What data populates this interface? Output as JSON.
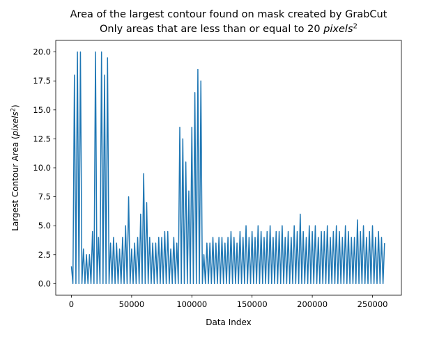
{
  "chart_data": {
    "type": "line",
    "title": [
      [
        {
          "text": "Area of the largest contour found on mask created by GrabCut",
          "style": "normal"
        }
      ],
      [
        {
          "text": "Only areas that are less than or equal to 20 ",
          "style": "normal"
        },
        {
          "text": "pixels",
          "style": "italic"
        },
        {
          "text": "2",
          "style": "sup"
        }
      ]
    ],
    "x_label": [
      {
        "text": "Data Index",
        "style": "normal"
      }
    ],
    "y_label": [
      {
        "text": "Largest Contour Area (",
        "style": "normal"
      },
      {
        "text": "pixels",
        "style": "italic"
      },
      {
        "text": "2",
        "style": "sup"
      },
      {
        "text": ")",
        "style": "normal"
      }
    ],
    "xlim": [
      -13000,
      274000
    ],
    "ylim": [
      -1,
      21
    ],
    "xticks": [
      0,
      50000,
      100000,
      150000,
      200000,
      250000
    ],
    "yticks": [
      {
        "value": 0,
        "label": "0.0"
      },
      {
        "value": 2.5,
        "label": "2.5"
      },
      {
        "value": 5,
        "label": "5.0"
      },
      {
        "value": 7.5,
        "label": "7.5"
      },
      {
        "value": 10,
        "label": "10.0"
      },
      {
        "value": 12.5,
        "label": "12.5"
      },
      {
        "value": 15,
        "label": "15.0"
      },
      {
        "value": 17.5,
        "label": "17.5"
      },
      {
        "value": 20,
        "label": "20.0"
      }
    ],
    "grid": false,
    "series": [
      {
        "color": "#1f77b4",
        "x": [
          0,
          1250,
          2500,
          3750,
          5000,
          6250,
          7500,
          8750,
          10000,
          11250,
          12500,
          13750,
          15000,
          16250,
          17500,
          18750,
          20000,
          21250,
          22500,
          23750,
          25000,
          26250,
          27500,
          28750,
          30000,
          31250,
          32500,
          33750,
          35000,
          36250,
          37500,
          38750,
          40000,
          41250,
          42500,
          43750,
          45000,
          46250,
          47500,
          48750,
          50000,
          51250,
          52500,
          53750,
          55000,
          56250,
          57500,
          58750,
          60000,
          61250,
          62500,
          63750,
          65000,
          66250,
          67500,
          68750,
          70000,
          71250,
          72500,
          73750,
          75000,
          76250,
          77500,
          78750,
          80000,
          81250,
          82500,
          83750,
          85000,
          86250,
          87500,
          88750,
          90000,
          91250,
          92500,
          93750,
          95000,
          96250,
          97500,
          98750,
          100000,
          101250,
          102500,
          103750,
          105000,
          106250,
          107500,
          108750,
          110000,
          111250,
          112500,
          113750,
          115000,
          116250,
          117500,
          118750,
          120000,
          121250,
          122500,
          123750,
          125000,
          126250,
          127500,
          128750,
          130000,
          131250,
          132500,
          133750,
          135000,
          136250,
          137500,
          138750,
          140000,
          141250,
          142500,
          143750,
          145000,
          146250,
          147500,
          148750,
          150000,
          151250,
          152500,
          153750,
          155000,
          156250,
          157500,
          158750,
          160000,
          161250,
          162500,
          163750,
          165000,
          166250,
          167500,
          168750,
          170000,
          171250,
          172500,
          173750,
          175000,
          176250,
          177500,
          178750,
          180000,
          181250,
          182500,
          183750,
          185000,
          186250,
          187500,
          188750,
          190000,
          191250,
          192500,
          193750,
          195000,
          196250,
          197500,
          198750,
          200000,
          201250,
          202500,
          203750,
          205000,
          206250,
          207500,
          208750,
          210000,
          211250,
          212500,
          213750,
          215000,
          216250,
          217500,
          218750,
          220000,
          221250,
          222500,
          223750,
          225000,
          226250,
          227500,
          228750,
          230000,
          231250,
          232500,
          233750,
          235000,
          236250,
          237500,
          238750,
          240000,
          241250,
          242500,
          243750,
          245000,
          246250,
          247500,
          248750,
          250000,
          251250,
          252500,
          253750,
          255000,
          256250,
          257500,
          258750,
          260000
        ],
        "values": [
          1.5,
          0,
          18,
          0,
          20,
          0,
          20,
          0,
          3,
          0,
          2.5,
          0,
          2.5,
          0,
          4.5,
          0,
          20,
          0,
          4,
          0,
          20,
          0,
          18,
          0,
          19.5,
          0,
          3.5,
          0,
          4,
          0,
          3.5,
          0,
          3,
          0,
          4,
          0,
          5,
          0,
          7.5,
          0,
          3,
          0,
          3.5,
          0,
          4,
          0,
          6,
          0,
          9.5,
          0,
          7,
          0,
          4,
          0,
          3.5,
          0,
          3.5,
          0,
          4,
          0,
          4,
          0,
          4.5,
          0,
          4.5,
          0,
          3,
          0,
          4,
          0,
          3.5,
          0,
          13.5,
          0,
          12.5,
          0,
          10.5,
          0,
          8,
          0,
          13.5,
          0,
          16.5,
          0,
          18.5,
          0,
          17.5,
          0,
          2.5,
          0,
          3.5,
          0,
          3.5,
          0,
          4,
          0,
          3.5,
          0,
          4,
          0,
          4,
          0,
          3.5,
          0,
          4,
          0,
          4.5,
          0,
          4,
          0,
          3.5,
          0,
          4.5,
          0,
          4,
          0,
          5,
          0,
          4,
          0,
          4.5,
          0,
          4,
          0,
          5,
          0,
          4.5,
          0,
          4,
          0,
          4.5,
          0,
          5,
          0,
          4,
          0,
          4.5,
          0,
          4.5,
          0,
          5,
          0,
          4,
          0,
          4.5,
          0,
          4,
          0,
          5,
          0,
          4.5,
          0,
          6,
          0,
          4.5,
          0,
          4,
          0,
          5,
          0,
          4.5,
          0,
          5,
          0,
          4,
          0,
          4.5,
          0,
          4.5,
          0,
          5,
          0,
          4,
          0,
          4.5,
          0,
          5,
          0,
          4.5,
          0,
          4,
          0,
          5,
          0,
          4.5,
          0,
          4,
          0,
          4,
          0,
          5.5,
          0,
          4.5,
          0,
          5,
          0,
          4,
          0,
          4.5,
          0,
          5,
          0,
          4,
          0,
          4.5,
          0,
          4,
          0,
          3.5
        ]
      }
    ]
  }
}
